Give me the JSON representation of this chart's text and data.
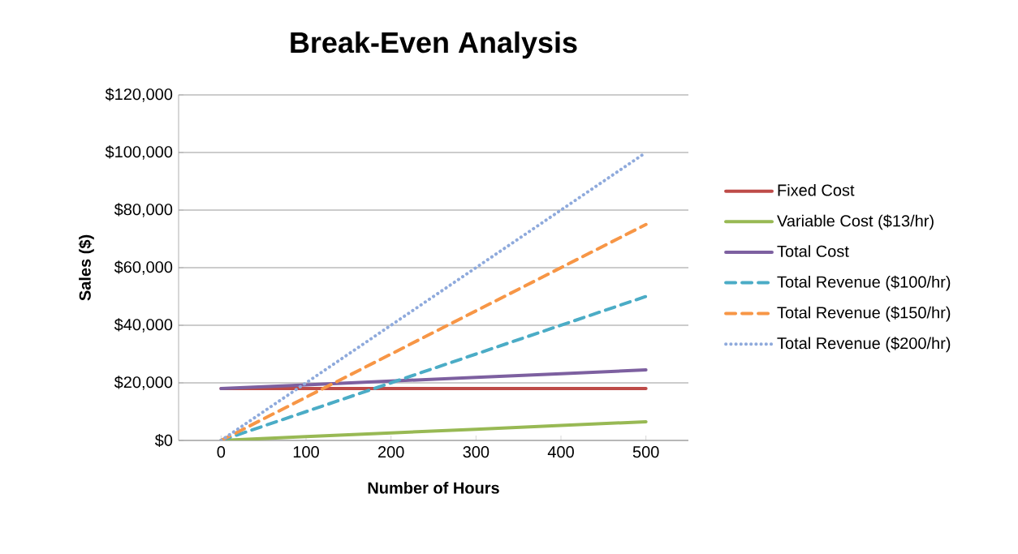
{
  "chart_data": {
    "type": "line",
    "title": "Break-Even Analysis",
    "xlabel": "Number of Hours",
    "ylabel": "Sales ($)",
    "categories": [
      "0",
      "100",
      "200",
      "300",
      "400",
      "500"
    ],
    "series": [
      {
        "name": "Fixed Cost",
        "color": "#be4b48",
        "line_style": "solid",
        "values": [
          18000,
          18000,
          18000,
          18000,
          18000,
          18000
        ]
      },
      {
        "name": "Variable Cost ($13/hr)",
        "color": "#98b954",
        "line_style": "solid",
        "values": [
          0,
          1300,
          2600,
          3900,
          5200,
          6500
        ]
      },
      {
        "name": "Total Cost",
        "color": "#7d60a0",
        "line_style": "solid",
        "values": [
          18000,
          19300,
          20600,
          21900,
          23200,
          24500
        ]
      },
      {
        "name": "Total Revenue ($100/hr)",
        "color": "#4bacc6",
        "line_style": "dashed",
        "values": [
          0,
          10000,
          20000,
          30000,
          40000,
          50000
        ]
      },
      {
        "name": "Total Revenue ($150/hr)",
        "color": "#f79646",
        "line_style": "dashed",
        "values": [
          0,
          15000,
          30000,
          45000,
          60000,
          75000
        ]
      },
      {
        "name": "Total Revenue ($200/hr)",
        "color": "#8faadc",
        "line_style": "dotted",
        "values": [
          0,
          20000,
          40000,
          60000,
          80000,
          100000
        ]
      }
    ],
    "ylim": [
      0,
      120000
    ],
    "yticks": [
      {
        "value": 0,
        "label": "$0"
      },
      {
        "value": 20000,
        "label": "$20,000"
      },
      {
        "value": 40000,
        "label": "$40,000"
      },
      {
        "value": 60000,
        "label": "$60,000"
      },
      {
        "value": 80000,
        "label": "$80,000"
      },
      {
        "value": 100000,
        "label": "$100,000"
      },
      {
        "value": 120000,
        "label": "$120,000"
      }
    ],
    "grid": "y",
    "legend": "right",
    "marker": "none"
  }
}
